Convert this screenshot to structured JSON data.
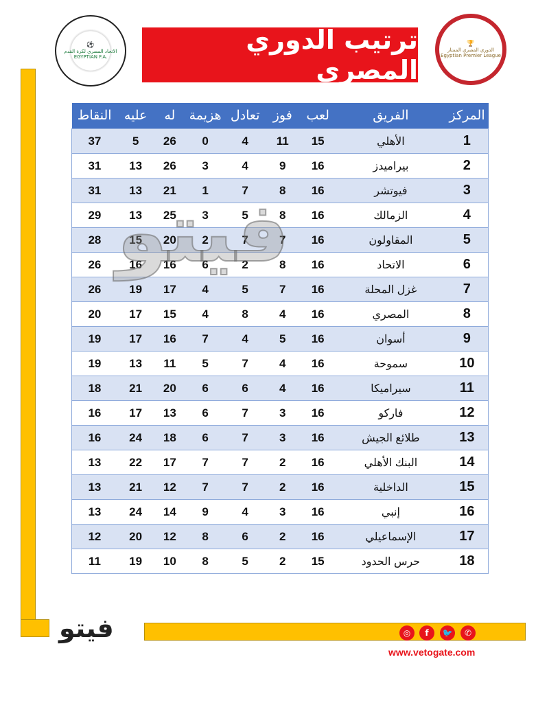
{
  "title": "ترتيب الدوري المصري",
  "logos": {
    "left": "الاتحاد المصري لكرة القدم EGYPTIAN F.A.",
    "right": "الدوري المصري الممتاز Egyptian Premier League"
  },
  "watermark": "فيتو",
  "brand_logo": "فيتو",
  "website": "www.vetogate.com",
  "social_icons": [
    "instagram-icon",
    "facebook-icon",
    "twitter-icon",
    "whatsapp-icon"
  ],
  "colors": {
    "header": "#4472c4",
    "banner": "#e8141b",
    "accent_bar": "#ffc000",
    "row_alt": "#d9e2f3"
  },
  "table": {
    "headers": [
      "المركز",
      "الفريق",
      "لعب",
      "فوز",
      "تعادل",
      "هزيمة",
      "له",
      "عليه",
      "النقاط"
    ],
    "rows": [
      [
        "1",
        "الأهلي",
        "15",
        "11",
        "4",
        "0",
        "26",
        "5",
        "37"
      ],
      [
        "2",
        "بيراميدز",
        "16",
        "9",
        "4",
        "3",
        "26",
        "13",
        "31"
      ],
      [
        "3",
        "فيوتشر",
        "16",
        "8",
        "7",
        "1",
        "21",
        "13",
        "31"
      ],
      [
        "4",
        "الزمالك",
        "16",
        "8",
        "5",
        "3",
        "25",
        "13",
        "29"
      ],
      [
        "5",
        "المقاولون",
        "16",
        "7",
        "7",
        "2",
        "20",
        "15",
        "28"
      ],
      [
        "6",
        "الاتحاد",
        "16",
        "8",
        "2",
        "6",
        "16",
        "16",
        "26"
      ],
      [
        "7",
        "غزل المحلة",
        "16",
        "7",
        "5",
        "4",
        "17",
        "19",
        "26"
      ],
      [
        "8",
        "المصري",
        "16",
        "4",
        "8",
        "4",
        "15",
        "17",
        "20"
      ],
      [
        "9",
        "أسوان",
        "16",
        "5",
        "4",
        "7",
        "16",
        "17",
        "19"
      ],
      [
        "10",
        "سموحة",
        "16",
        "4",
        "7",
        "5",
        "11",
        "13",
        "19"
      ],
      [
        "11",
        "سيراميكا",
        "16",
        "4",
        "6",
        "6",
        "20",
        "21",
        "18"
      ],
      [
        "12",
        "فاركو",
        "16",
        "3",
        "7",
        "6",
        "13",
        "17",
        "16"
      ],
      [
        "13",
        "طلائع الجيش",
        "16",
        "3",
        "7",
        "6",
        "18",
        "24",
        "16"
      ],
      [
        "14",
        "البنك الأهلي",
        "16",
        "2",
        "7",
        "7",
        "17",
        "22",
        "13"
      ],
      [
        "15",
        "الداخلية",
        "16",
        "2",
        "7",
        "7",
        "12",
        "21",
        "13"
      ],
      [
        "16",
        "إنبي",
        "16",
        "3",
        "4",
        "9",
        "14",
        "24",
        "13"
      ],
      [
        "17",
        "الإسماعيلي",
        "16",
        "2",
        "6",
        "8",
        "12",
        "20",
        "12"
      ],
      [
        "18",
        "حرس الحدود",
        "15",
        "2",
        "5",
        "8",
        "10",
        "19",
        "11"
      ]
    ]
  }
}
